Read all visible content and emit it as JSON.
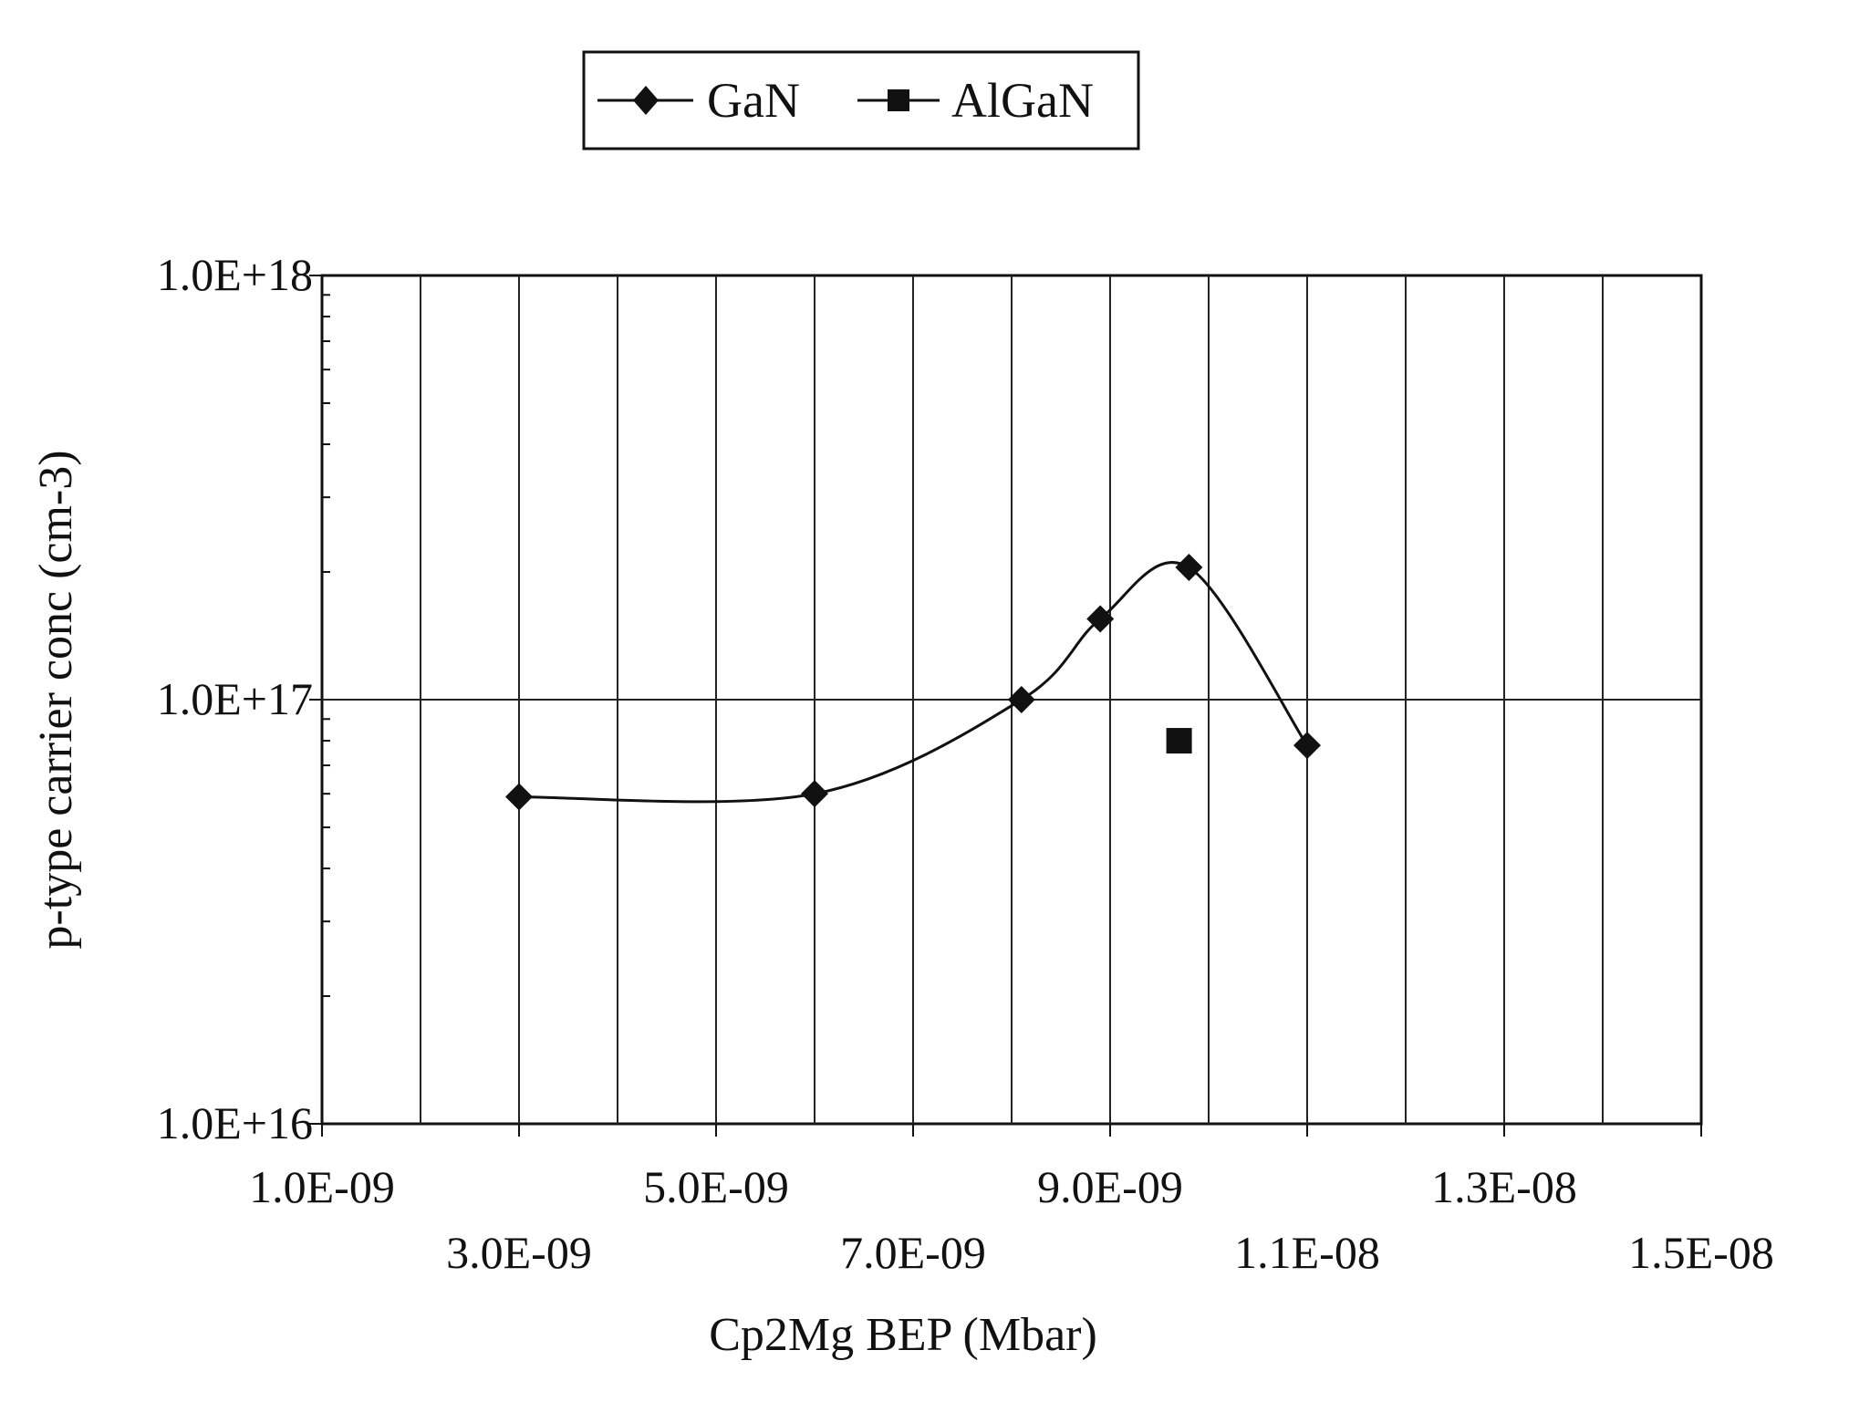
{
  "chart_data": {
    "type": "scatter",
    "title": "",
    "xlabel": "Cp2Mg BEP (Mbar)",
    "ylabel": "p-type carrier conc (cm-3)",
    "xlim": [
      1e-09,
      1.5e-08
    ],
    "ylim": [
      1e+16,
      1e+18
    ],
    "yscale": "log",
    "grid": true,
    "legend_position": "top-center",
    "x_tick_values": [
      1e-09,
      3e-09,
      5e-09,
      7e-09,
      9e-09,
      1.1e-08,
      1.3e-08,
      1.5e-08
    ],
    "x_tick_labels": [
      "1.0E-09",
      "3.0E-09",
      "5.0E-09",
      "7.0E-09",
      "9.0E-09",
      "1.1E-08",
      "1.3E-08",
      "1.5E-08"
    ],
    "y_tick_values": [
      1e+16,
      1e+17,
      1e+18
    ],
    "y_tick_labels": [
      "1.0E+16",
      "1.0E+17",
      "1.0E+18"
    ],
    "series": [
      {
        "name": "GaN",
        "marker": "diamond",
        "line": "smooth",
        "color": "#111111",
        "points": [
          {
            "x": 3e-09,
            "y": 5.9e+16
          },
          {
            "x": 6e-09,
            "y": 6e+16
          },
          {
            "x": 8.1e-09,
            "y": 1e+17
          },
          {
            "x": 8.9e-09,
            "y": 1.55e+17
          },
          {
            "x": 9.8e-09,
            "y": 2.05e+17
          },
          {
            "x": 1.1e-08,
            "y": 7.8e+16
          }
        ]
      },
      {
        "name": "AlGaN",
        "marker": "square",
        "line": "none",
        "color": "#111111",
        "points": [
          {
            "x": 9.7e-09,
            "y": 8e+16
          }
        ]
      }
    ]
  }
}
